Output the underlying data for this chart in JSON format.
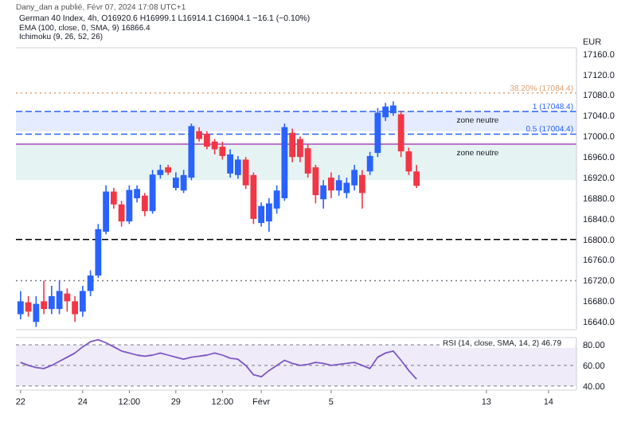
{
  "chart_data": [
    {
      "type": "candlestick",
      "title": "German 40 Index, 4h, O16920.6 H16999.1 L16914.1 C16904.1 −16.1 (−0.10%)",
      "subtitle": "Dany_dan a publié, Févr 07, 2024 17:08 UTC+1",
      "ylabel": "EUR",
      "annotations": [
        "EMA (100, close, 0, SMA, 9)  16866.4",
        "Ichimoku (9, 26, 52, 26)"
      ],
      "categories": [
        null,
        null,
        null,
        null,
        null,
        null,
        null,
        null,
        null,
        null,
        null,
        null,
        null,
        null,
        null,
        null,
        null,
        null,
        null,
        null,
        null,
        null,
        null,
        null,
        null,
        null,
        null,
        null,
        null,
        null,
        null,
        null,
        null,
        null,
        null,
        null,
        null,
        null,
        null,
        null,
        null,
        null,
        null,
        null,
        null,
        null,
        null,
        null,
        null,
        null,
        null,
        null,
        null,
        null,
        null,
        null,
        null,
        null,
        null,
        null,
        null,
        null,
        null,
        null,
        null,
        null,
        null,
        null,
        null,
        null,
        null,
        null
      ],
      "ohlc": [
        [
          16655,
          16700,
          16645,
          16680
        ],
        [
          16678,
          16690,
          16650,
          16660
        ],
        [
          16640,
          16690,
          16630,
          16675
        ],
        [
          16680,
          16720,
          16655,
          16665
        ],
        [
          16665,
          16710,
          16655,
          16690
        ],
        [
          16665,
          16720,
          16655,
          16700
        ],
        [
          16695,
          16705,
          16660,
          16680
        ],
        [
          16680,
          16690,
          16640,
          16655
        ],
        [
          16660,
          16710,
          16650,
          16700
        ],
        [
          16700,
          16740,
          16690,
          16730
        ],
        [
          16730,
          16830,
          16725,
          16820
        ],
        [
          16815,
          16905,
          16810,
          16893
        ],
        [
          16893,
          16900,
          16860,
          16868
        ],
        [
          16868,
          16875,
          16825,
          16835
        ],
        [
          16835,
          16905,
          16830,
          16896
        ],
        [
          16880,
          16905,
          16872,
          16898
        ],
        [
          16885,
          16890,
          16845,
          16855
        ],
        [
          16855,
          16935,
          16850,
          16926
        ],
        [
          16925,
          16945,
          16918,
          16935
        ],
        [
          16940,
          16945,
          16925,
          16930
        ],
        [
          16900,
          16930,
          16895,
          16920
        ],
        [
          16895,
          16935,
          16890,
          16925
        ],
        [
          16920,
          17025,
          16915,
          17020
        ],
        [
          17010,
          17018,
          16990,
          16995
        ],
        [
          17005,
          17010,
          16975,
          16980
        ],
        [
          16990,
          16995,
          16965,
          16975
        ],
        [
          16980,
          16990,
          16955,
          16962
        ],
        [
          16928,
          16975,
          16920,
          16965
        ],
        [
          16925,
          16962,
          16918,
          16955
        ],
        [
          16955,
          16960,
          16898,
          16905
        ],
        [
          16925,
          16930,
          16830,
          16840
        ],
        [
          16832,
          16872,
          16825,
          16865
        ],
        [
          16835,
          16880,
          16815,
          16870
        ],
        [
          16860,
          16905,
          16850,
          16895
        ],
        [
          16880,
          17025,
          16875,
          17018
        ],
        [
          17007,
          17015,
          16950,
          16960
        ],
        [
          16995,
          17000,
          16950,
          16960
        ],
        [
          16977,
          16985,
          16920,
          16928
        ],
        [
          16940,
          16945,
          16870,
          16886
        ],
        [
          16878,
          16915,
          16860,
          16905
        ],
        [
          16920,
          16930,
          16880,
          16895
        ],
        [
          16895,
          16925,
          16885,
          16915
        ],
        [
          16890,
          16920,
          16880,
          16910
        ],
        [
          16905,
          16945,
          16895,
          16935
        ],
        [
          16925,
          16935,
          16860,
          16890
        ],
        [
          16932,
          16970,
          16925,
          16962
        ],
        [
          16968,
          17055,
          16960,
          17046
        ],
        [
          17037,
          17065,
          17030,
          17058
        ],
        [
          17045,
          17068,
          17040,
          17060
        ],
        [
          17043,
          17050,
          16960,
          16971
        ],
        [
          16971,
          16978,
          16925,
          16932
        ],
        [
          16932,
          16945,
          16900,
          16904.1
        ],
        null,
        null,
        null,
        null,
        null,
        null,
        null,
        null,
        null,
        null,
        null,
        null,
        null,
        null,
        null,
        null,
        null,
        null,
        null,
        null
      ],
      "colors": [
        "#2962ff",
        "#f23645",
        "#2962ff",
        "#f23645",
        "#2962ff",
        "#2962ff",
        "#f23645",
        "#f23645",
        "#2962ff",
        "#2962ff",
        "#2962ff",
        "#2962ff",
        "#f23645",
        "#f23645",
        "#2962ff",
        "#2962ff",
        "#f23645",
        "#2962ff",
        "#2962ff",
        "#f23645",
        "#2962ff",
        "#2962ff",
        "#2962ff",
        "#f23645",
        "#f23645",
        "#f23645",
        "#f23645",
        "#2962ff",
        "#2962ff",
        "#f23645",
        "#f23645",
        "#2962ff",
        "#2962ff",
        "#2962ff",
        "#2962ff",
        "#f23645",
        "#f23645",
        "#f23645",
        "#f23645",
        "#2962ff",
        "#f23645",
        "#2962ff",
        "#2962ff",
        "#2962ff",
        "#f23645",
        "#2962ff",
        "#2962ff",
        "#2962ff",
        "#2962ff",
        "#f23645",
        "#f23645",
        "#f23645",
        null,
        null,
        null,
        null,
        null,
        null,
        null,
        null,
        null,
        null,
        null,
        null,
        null,
        null,
        null,
        null,
        null,
        null,
        null,
        null
      ],
      "ylim": [
        16625,
        17172
      ],
      "yticks": [
        {
          "value": 16640,
          "label": "16640.0"
        },
        {
          "value": 16680,
          "label": "16680.0"
        },
        {
          "value": 16720,
          "label": "16720.0"
        },
        {
          "value": 16760,
          "label": "16760.0"
        },
        {
          "value": 16800,
          "label": "16800.0"
        },
        {
          "value": 16840,
          "label": "16840.0"
        },
        {
          "value": 16880,
          "label": "16880.0"
        },
        {
          "value": 16920,
          "label": "16920.0"
        },
        {
          "value": 16960,
          "label": "16960.0"
        },
        {
          "value": 17000,
          "label": "17000.0"
        },
        {
          "value": 17040,
          "label": "17040.0"
        },
        {
          "value": 17080,
          "label": "17080.0"
        },
        {
          "value": 17120,
          "label": "17120.0"
        },
        {
          "value": 17160,
          "label": "17160.0"
        }
      ],
      "tick_labels": "y",
      "ref_lines": [
        {
          "axis": "y",
          "value": 17084.4,
          "label": "38.20% (17084.4)",
          "color": "#e0a070",
          "line_style": "dotted"
        },
        {
          "axis": "y",
          "value": 17048.4,
          "label": "1 (17048.4)",
          "color": "#2962ff",
          "line_style": "dashed"
        },
        {
          "axis": "y",
          "value": 17004.4,
          "label": "0.5 (17004.4)",
          "color": "#2962ff",
          "line_style": "dashed"
        },
        {
          "axis": "y",
          "value": 16985,
          "color": "#ab47bc",
          "line_style": "solid"
        },
        {
          "axis": "y",
          "value": 16800,
          "color": "#000000",
          "line_style": "dashed"
        },
        {
          "axis": "y",
          "value": 16720,
          "color": "#787b86",
          "line_style": "dotted"
        }
      ],
      "bands": [
        {
          "axis": "y",
          "from": 17010,
          "to": 17048.4,
          "label": "zone neutre",
          "color": "#2962ff"
        },
        {
          "axis": "y",
          "from": 16915,
          "to": 16985,
          "label": "zone neutre",
          "color": "#26a69a"
        }
      ]
    },
    {
      "type": "line",
      "title": "RSI (14, close, SMA, 14, 2)  46.79",
      "categories": [
        "22",
        null,
        null,
        null,
        null,
        null,
        null,
        null,
        "24",
        null,
        null,
        null,
        null,
        null,
        "12:00",
        null,
        null,
        null,
        null,
        null,
        "29",
        null,
        null,
        null,
        null,
        null,
        "12:00",
        null,
        null,
        null,
        null,
        "Févr",
        null,
        null,
        null,
        null,
        null,
        null,
        null,
        null,
        "5",
        null,
        null,
        null,
        null,
        null,
        null,
        null,
        null,
        null,
        null,
        null,
        null,
        null,
        null,
        null,
        null,
        null,
        null,
        null,
        "13",
        null,
        null,
        null,
        null,
        null,
        null,
        null,
        "14",
        null,
        null,
        null
      ],
      "series": [
        {
          "color": "#7e57c2",
          "values": [
            63,
            60,
            58,
            57,
            60,
            64,
            68,
            72,
            78,
            83,
            85,
            82,
            78,
            74,
            72,
            70,
            69,
            70,
            72,
            70,
            68,
            66,
            68,
            69,
            70,
            72,
            70,
            67,
            66,
            60,
            51,
            49,
            55,
            60,
            65,
            62,
            60,
            61,
            63,
            62,
            60,
            61,
            62,
            63,
            60,
            57,
            68,
            72,
            74,
            65,
            55,
            46.79,
            null,
            null,
            null,
            null,
            null,
            null,
            null,
            null,
            null,
            null,
            null,
            null,
            null,
            null,
            null,
            null,
            null,
            null,
            null,
            null
          ]
        }
      ],
      "ylim": [
        36,
        87
      ],
      "yticks": [
        {
          "value": 40,
          "label": "40.00"
        },
        {
          "value": 60,
          "label": "60.00"
        },
        {
          "value": 80,
          "label": "80.00"
        }
      ],
      "bands": [
        {
          "axis": "y",
          "from": 40,
          "to": 80,
          "color": "#7e57c2"
        }
      ],
      "grid": "y"
    }
  ]
}
